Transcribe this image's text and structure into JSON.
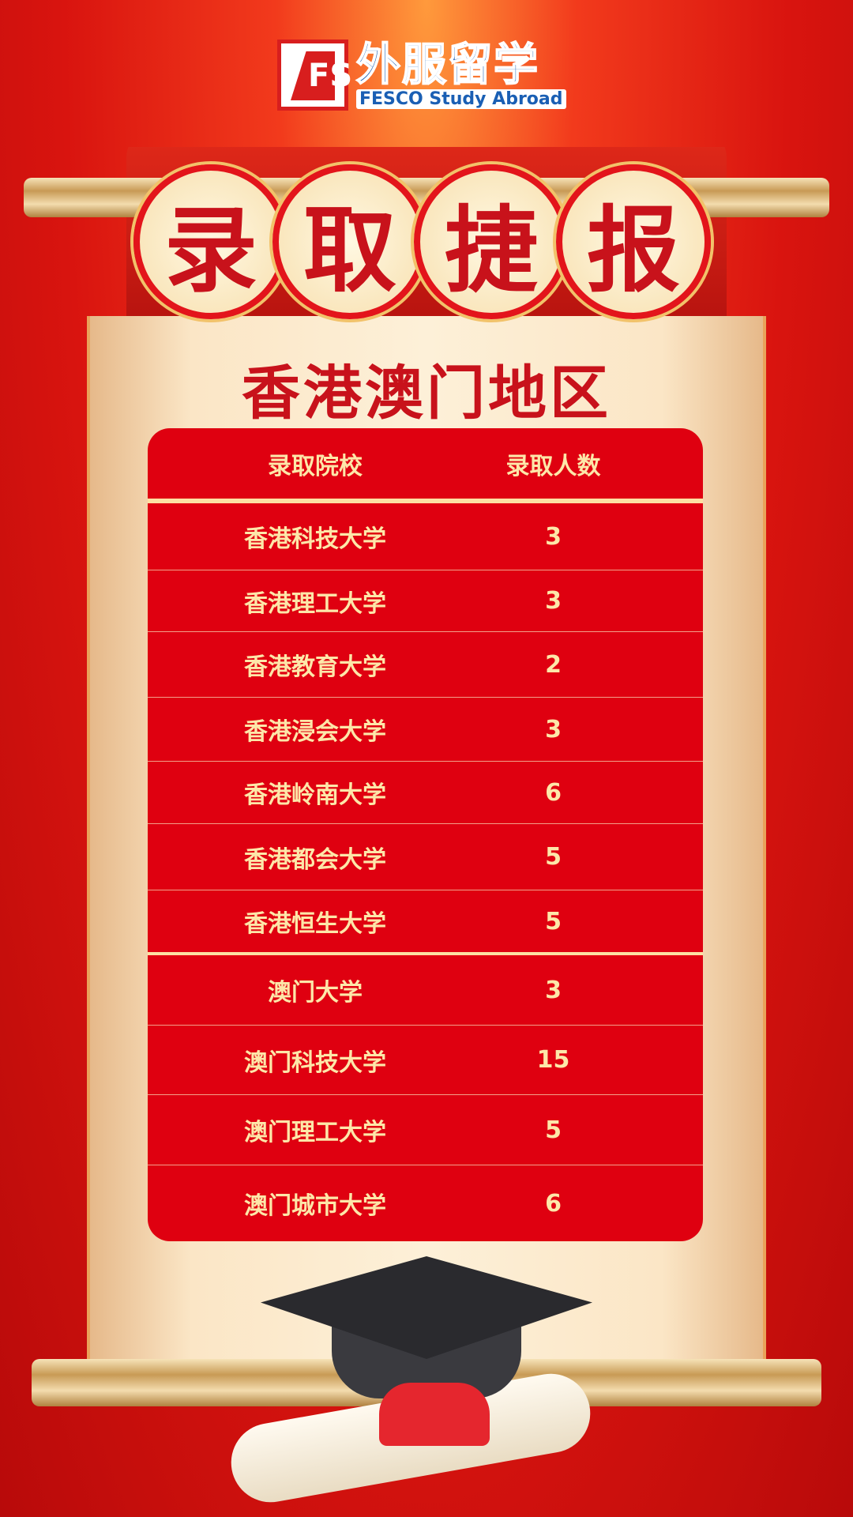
{
  "logo": {
    "mark": "FS",
    "cn": "外服留学",
    "en": "FESCO Study Abroad"
  },
  "title": [
    "录",
    "取",
    "捷",
    "报"
  ],
  "subtitle": "香港澳门地区",
  "table": {
    "headers": [
      "录取院校",
      "录取人数"
    ],
    "rows": [
      {
        "school": "香港科技大学",
        "count": "3"
      },
      {
        "school": "香港理工大学",
        "count": "3"
      },
      {
        "school": "香港教育大学",
        "count": "2"
      },
      {
        "school": "香港浸会大学",
        "count": "3"
      },
      {
        "school": "香港岭南大学",
        "count": "6"
      },
      {
        "school": "香港都会大学",
        "count": "5"
      },
      {
        "school": "香港恒生大学",
        "count": "5"
      },
      {
        "school": "澳门大学",
        "count": "3"
      },
      {
        "school": "澳门科技大学",
        "count": "15"
      },
      {
        "school": "澳门理工大学",
        "count": "5"
      },
      {
        "school": "澳门城市大学",
        "count": "6"
      }
    ]
  },
  "colors": {
    "red": "#df0010",
    "gold_text": "#fde7a9",
    "logo_blue": "#1a5fb4"
  }
}
